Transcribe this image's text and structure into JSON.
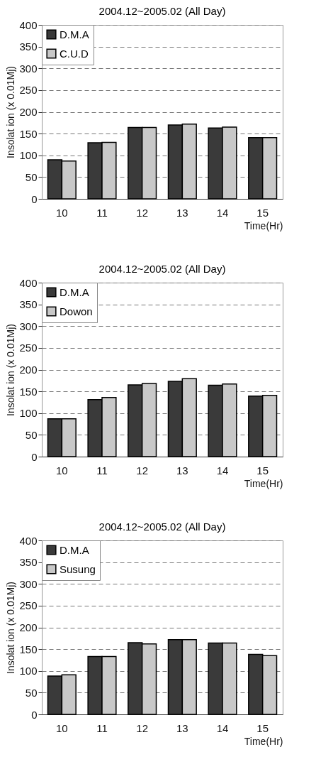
{
  "chart_data": [
    {
      "type": "bar",
      "title": "2004.12~2005.02 (All Day)",
      "xlabel": "Time(Hr)",
      "ylabel": "Insolat ion (x 0.01Mj)",
      "categories": [
        "10",
        "11",
        "12",
        "13",
        "14",
        "15"
      ],
      "series": [
        {
          "name": "D.M.A",
          "color": "#3a3a3a",
          "values": [
            90,
            129,
            164,
            170,
            163,
            141
          ]
        },
        {
          "name": "C.U.D",
          "color": "#c8c8c8",
          "values": [
            87,
            130,
            164,
            172,
            165,
            141
          ]
        }
      ],
      "ylim": [
        0,
        400
      ],
      "yticks": [
        0,
        50,
        100,
        150,
        200,
        250,
        300,
        350,
        400
      ],
      "grid": "y",
      "legend": "top left"
    },
    {
      "type": "bar",
      "title": "2004.12~2005.02 (All Day)",
      "xlabel": "Time(Hr)",
      "ylabel": "Insolat ion (x 0.01Mj)",
      "categories": [
        "10",
        "11",
        "12",
        "13",
        "14",
        "15"
      ],
      "series": [
        {
          "name": "D.M.A",
          "color": "#3a3a3a",
          "values": [
            87,
            131,
            165,
            173,
            164,
            139
          ]
        },
        {
          "name": "Dowon",
          "color": "#c8c8c8",
          "values": [
            87,
            136,
            168,
            179,
            167,
            141
          ]
        }
      ],
      "ylim": [
        0,
        400
      ],
      "yticks": [
        0,
        50,
        100,
        150,
        200,
        250,
        300,
        350,
        400
      ],
      "grid": "y",
      "legend": "top left"
    },
    {
      "type": "bar",
      "title": "2004.12~2005.02 (All Day)",
      "xlabel": "Time(Hr)",
      "ylabel": "Insolat ion (x 0.01Mj)",
      "categories": [
        "10",
        "11",
        "12",
        "13",
        "14",
        "15"
      ],
      "series": [
        {
          "name": "D.M.A",
          "color": "#3a3a3a",
          "values": [
            88,
            133,
            165,
            172,
            164,
            138
          ]
        },
        {
          "name": "Susung",
          "color": "#c8c8c8",
          "values": [
            91,
            133,
            162,
            172,
            164,
            135
          ]
        }
      ],
      "ylim": [
        0,
        400
      ],
      "yticks": [
        0,
        50,
        100,
        150,
        200,
        250,
        300,
        350,
        400
      ],
      "grid": "y",
      "legend": "top left"
    }
  ]
}
